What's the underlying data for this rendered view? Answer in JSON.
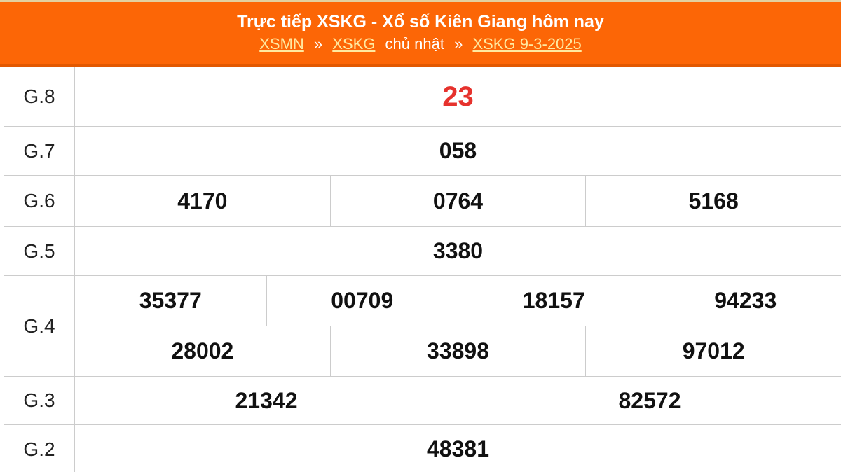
{
  "header": {
    "title": "Trực tiếp XSKG - Xổ số Kiên Giang hôm nay",
    "breadcrumb": [
      {
        "label": "XSMN",
        "type": "link"
      },
      {
        "label": "»",
        "type": "separator"
      },
      {
        "label": "XSKG",
        "type": "link"
      },
      {
        "label": "chủ nhật",
        "type": "text"
      },
      {
        "label": "»",
        "type": "separator"
      },
      {
        "label": "XSKG 9-3-2025",
        "type": "link"
      }
    ]
  },
  "results": {
    "rows": [
      {
        "label": "G.8",
        "highlight": true,
        "groups": [
          [
            "23"
          ]
        ]
      },
      {
        "label": "G.7",
        "highlight": false,
        "groups": [
          [
            "058"
          ]
        ]
      },
      {
        "label": "G.6",
        "highlight": false,
        "groups": [
          [
            "4170",
            "0764",
            "5168"
          ]
        ]
      },
      {
        "label": "G.5",
        "highlight": false,
        "groups": [
          [
            "3380"
          ]
        ]
      },
      {
        "label": "G.4",
        "highlight": false,
        "groups": [
          [
            "35377",
            "00709",
            "18157",
            "94233"
          ],
          [
            "28002",
            "33898",
            "97012"
          ]
        ]
      },
      {
        "label": "G.3",
        "highlight": false,
        "groups": [
          [
            "21342",
            "82572"
          ]
        ]
      },
      {
        "label": "G.2",
        "highlight": false,
        "groups": [
          [
            "48381"
          ]
        ]
      }
    ]
  },
  "colors": {
    "header_background": "#FC6606",
    "header_bottom_strip": "#E25800",
    "link_yellow": "#FFE9A0",
    "highlight_red": "#E6322D",
    "value_black": "#111111",
    "table_border": "#CCCCCC"
  }
}
